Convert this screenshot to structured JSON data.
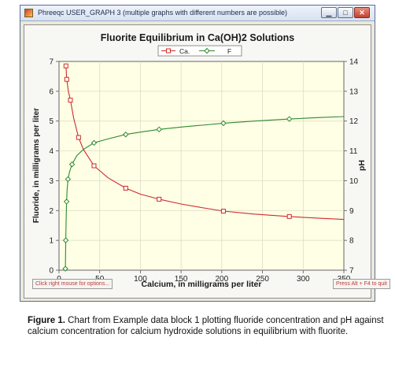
{
  "window": {
    "title": "Phreeqc USER_GRAPH 3 (multiple graphs with different numbers are possible)",
    "min_glyph": "▁",
    "max_glyph": "□",
    "close_glyph": "✕"
  },
  "status": {
    "left": "Click right mouse for options...",
    "right": "Press Alt + F4 to quit"
  },
  "caption": {
    "label": "Figure 1.",
    "text": " Chart from Example data block 1 plotting fluoride concentration and pH against calcium concentration for calcium hydroxide solutions in equilibrium with fluorite."
  },
  "colors": {
    "ca": "#cc2b2b",
    "f": "#2f8a2f",
    "plot_bg": "#ffffe6",
    "title": "#1a1a1a"
  },
  "chart_data": {
    "type": "line",
    "title": "Fluorite Equilibrium in Ca(OH)2 Solutions",
    "xlabel": "Calcium, in milligrams per liter",
    "ylabel": "Fluoride, in milligrams per liter",
    "y2label": "pH",
    "xlim": [
      0,
      350
    ],
    "ylim": [
      0,
      7
    ],
    "y2lim": [
      7,
      14
    ],
    "xticks": [
      0,
      50,
      100,
      150,
      200,
      250,
      300,
      350
    ],
    "yticks": [
      0,
      1,
      2,
      3,
      4,
      5,
      6,
      7
    ],
    "y2ticks": [
      7,
      8,
      9,
      10,
      11,
      12,
      13,
      14
    ],
    "grid": true,
    "legend_position": "top-center",
    "series": [
      {
        "name": "Ca",
        "legend_label": "Ca.",
        "axis": "left",
        "marker": "square",
        "points": [
          [
            8.5,
            6.85
          ],
          [
            9.5,
            6.4
          ],
          [
            11.5,
            6.0
          ],
          [
            14,
            5.7
          ],
          [
            18,
            5.1
          ],
          [
            24,
            4.45
          ],
          [
            30,
            4.05
          ],
          [
            43,
            3.5
          ],
          [
            60,
            3.1
          ],
          [
            82,
            2.75
          ],
          [
            100,
            2.55
          ],
          [
            123,
            2.38
          ],
          [
            150,
            2.22
          ],
          [
            175,
            2.1
          ],
          [
            202,
            1.98
          ],
          [
            240,
            1.88
          ],
          [
            283,
            1.8
          ],
          [
            320,
            1.74
          ],
          [
            350,
            1.7
          ]
        ],
        "marker_points": [
          [
            8.5,
            6.85
          ],
          [
            9.5,
            6.4
          ],
          [
            14,
            5.7
          ],
          [
            24,
            4.45
          ],
          [
            43,
            3.5
          ],
          [
            82,
            2.75
          ],
          [
            123,
            2.38
          ],
          [
            202,
            1.98
          ],
          [
            283,
            1.8
          ]
        ]
      },
      {
        "name": "F",
        "legend_label": "F",
        "axis": "right",
        "marker": "diamond",
        "points": [
          [
            7.8,
            7.05
          ],
          [
            8,
            7.5
          ],
          [
            8.3,
            8.0
          ],
          [
            8.7,
            8.6
          ],
          [
            9.3,
            9.3
          ],
          [
            10,
            9.7
          ],
          [
            11,
            10.05
          ],
          [
            13,
            10.3
          ],
          [
            16,
            10.55
          ],
          [
            22,
            10.85
          ],
          [
            30,
            11.05
          ],
          [
            43,
            11.27
          ],
          [
            60,
            11.4
          ],
          [
            82,
            11.55
          ],
          [
            100,
            11.63
          ],
          [
            123,
            11.72
          ],
          [
            150,
            11.8
          ],
          [
            175,
            11.86
          ],
          [
            202,
            11.93
          ],
          [
            240,
            12.0
          ],
          [
            283,
            12.07
          ],
          [
            320,
            12.12
          ],
          [
            350,
            12.15
          ]
        ],
        "marker_points": [
          [
            7.8,
            7.05
          ],
          [
            8.3,
            8.0
          ],
          [
            9.3,
            9.3
          ],
          [
            11,
            10.05
          ],
          [
            16,
            10.55
          ],
          [
            43,
            11.27
          ],
          [
            82,
            11.55
          ],
          [
            123,
            11.72
          ],
          [
            202,
            11.93
          ],
          [
            283,
            12.07
          ]
        ]
      }
    ]
  }
}
